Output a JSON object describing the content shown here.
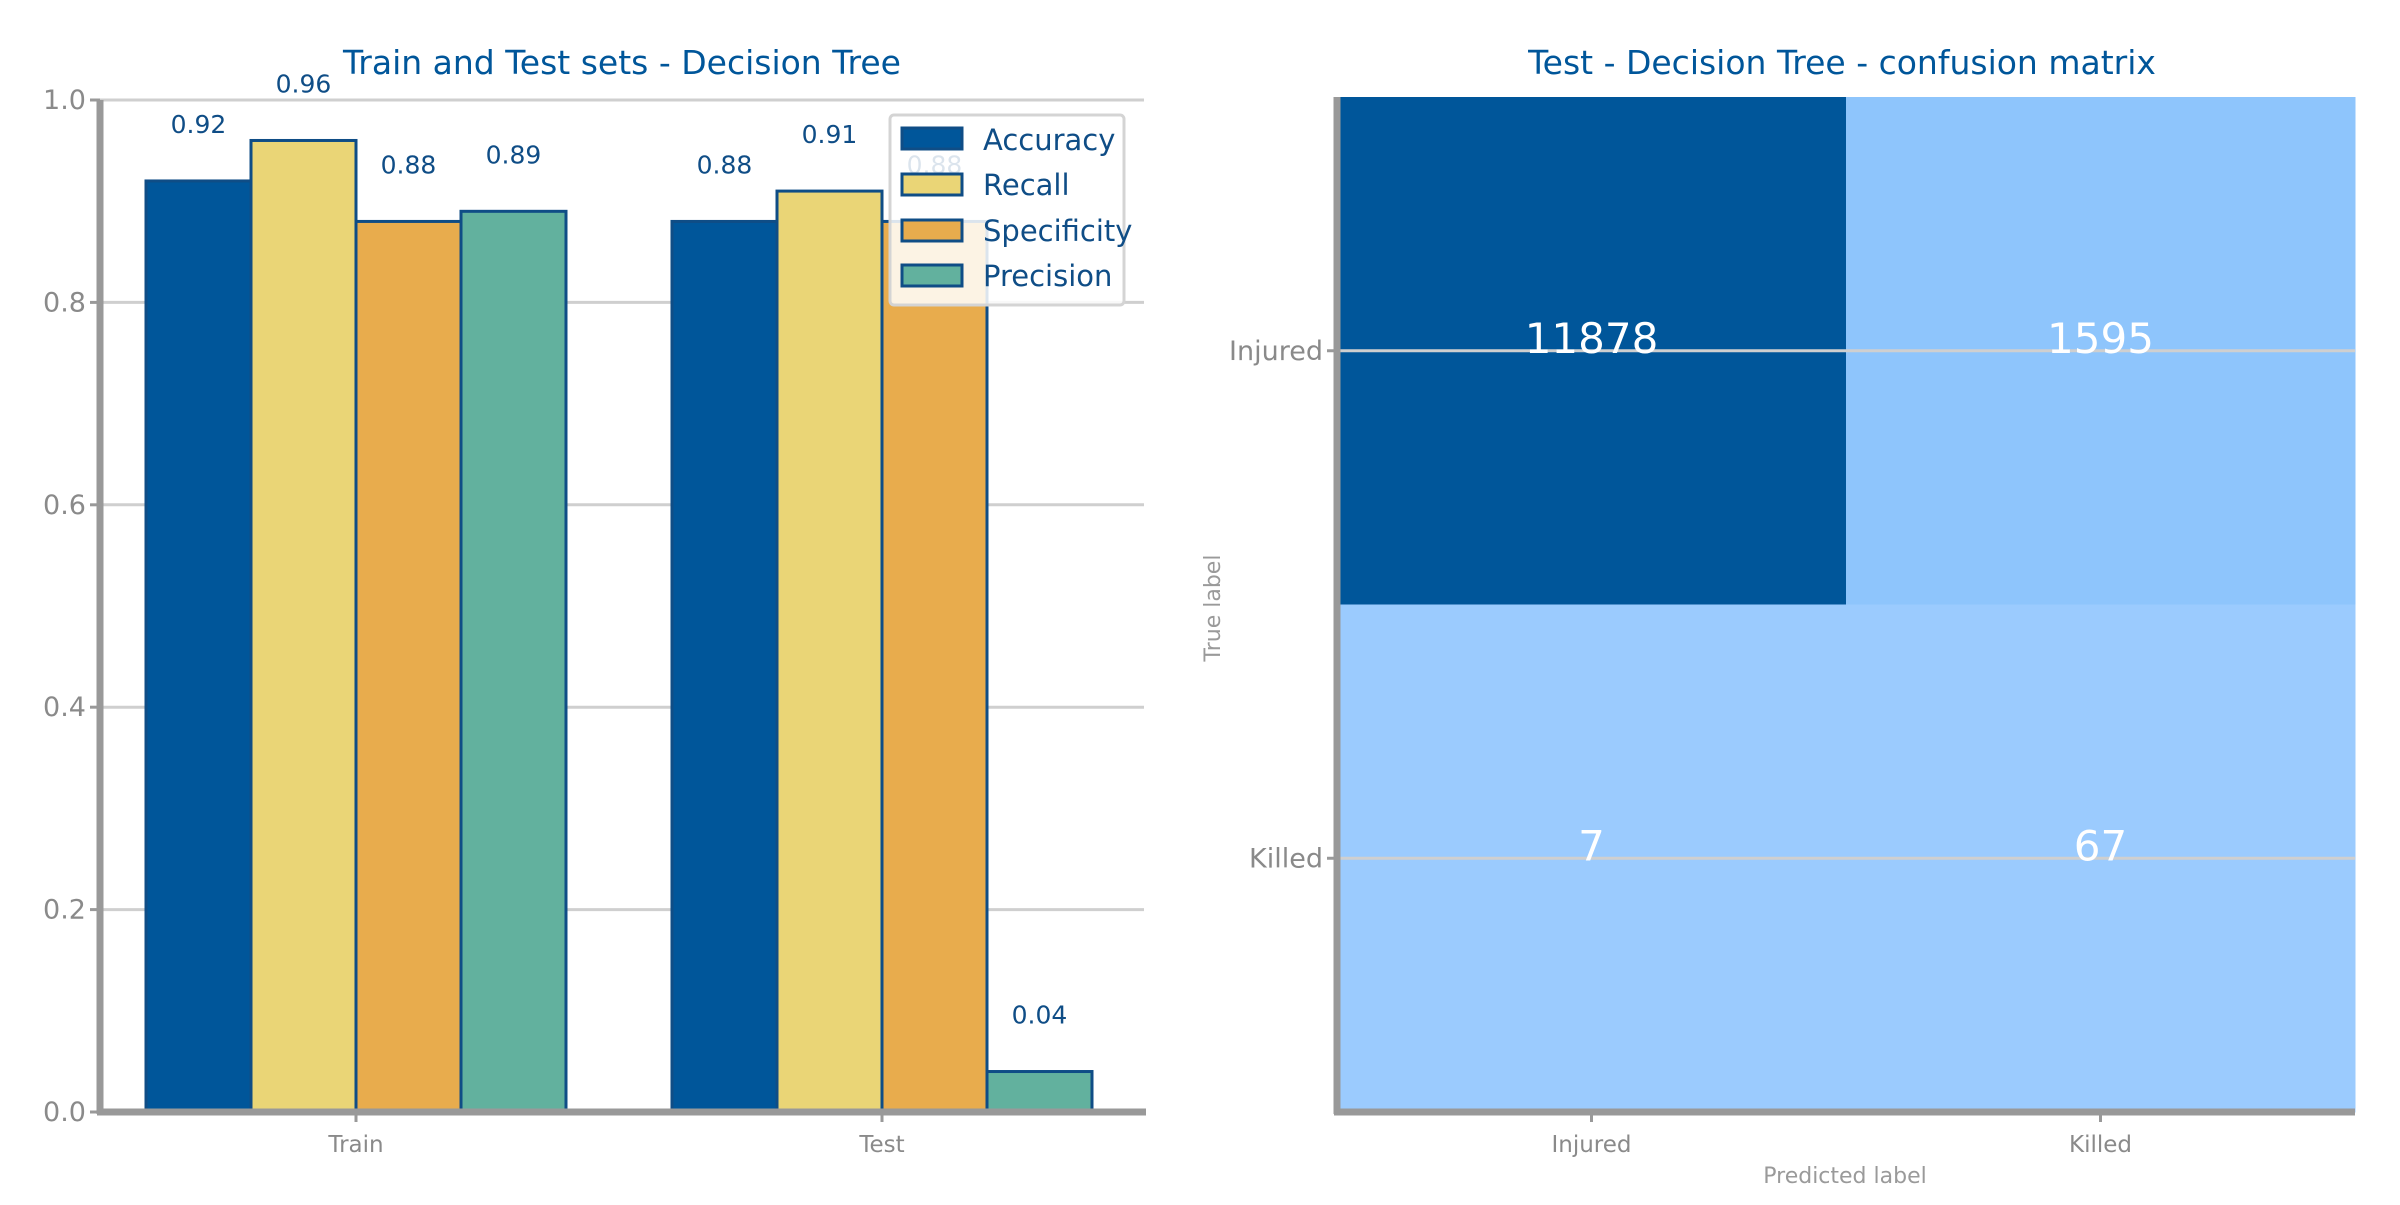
{
  "chart_data": [
    {
      "type": "bar",
      "title": "Train and Test sets - Decision Tree",
      "categories": [
        "Train",
        "Test"
      ],
      "series": [
        {
          "name": "Accuracy",
          "values": [
            0.92,
            0.88
          ],
          "labels": [
            "0.92",
            "0.88"
          ],
          "color": "#00569A"
        },
        {
          "name": "Recall",
          "values": [
            0.96,
            0.91
          ],
          "labels": [
            "0.96",
            "0.91"
          ],
          "color": "#EAD576"
        },
        {
          "name": "Specificity",
          "values": [
            0.88,
            0.88
          ],
          "labels": [
            "0.88",
            "0.88"
          ],
          "color": "#E8AC4D"
        },
        {
          "name": "Precision",
          "values": [
            0.89,
            0.04
          ],
          "labels": [
            "0.89",
            "0.04"
          ],
          "color": "#62B19E"
        }
      ],
      "ylim": [
        0,
        1.0
      ],
      "yticks": [
        "0.0",
        "0.2",
        "0.4",
        "0.6",
        "0.8",
        "1.0"
      ],
      "grid": true,
      "legend_position": "top-right",
      "edge_color": "#0f4d86"
    },
    {
      "type": "heatmap",
      "title": "Test - Decision Tree - confusion matrix",
      "xlabel": "Predicted label",
      "ylabel": "True label",
      "x_categories": [
        "Injured",
        "Killed"
      ],
      "y_categories": [
        "Injured",
        "Killed"
      ],
      "values": [
        [
          11878,
          1595
        ],
        [
          7,
          67
        ]
      ],
      "labels": [
        [
          "11878",
          "1595"
        ],
        [
          "7",
          "67"
        ]
      ],
      "colors": [
        [
          "#00569A",
          "#8EC5FC"
        ],
        [
          "#9BCBFE",
          "#9BCBFE"
        ]
      ]
    }
  ]
}
